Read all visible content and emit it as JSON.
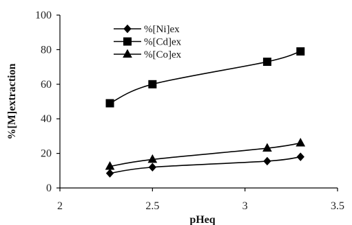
{
  "chart_data": {
    "type": "line",
    "xlabel": "pHeq",
    "ylabel": "%[M]extraction",
    "xlim": [
      2,
      3.5
    ],
    "ylim": [
      0,
      100
    ],
    "xticks": [
      "2",
      "2.5",
      "3",
      "3.5"
    ],
    "yticks": [
      "0",
      "20",
      "40",
      "60",
      "80",
      "100"
    ],
    "grid": false,
    "legend_position": "top-left",
    "series": [
      {
        "name": "%[Ni]ex",
        "marker": "diamond",
        "color": "#000000",
        "x": [
          2.27,
          2.5,
          3.12,
          3.3
        ],
        "y": [
          8.5,
          12,
          15.5,
          18
        ]
      },
      {
        "name": "%[Cd]ex",
        "marker": "square",
        "color": "#000000",
        "x": [
          2.27,
          2.5,
          3.12,
          3.3
        ],
        "y": [
          49,
          60,
          73,
          79
        ]
      },
      {
        "name": "%[Co]ex",
        "marker": "triangle",
        "color": "#000000",
        "x": [
          2.27,
          2.5,
          3.12,
          3.3
        ],
        "y": [
          12.5,
          16.5,
          23,
          26
        ]
      }
    ]
  }
}
